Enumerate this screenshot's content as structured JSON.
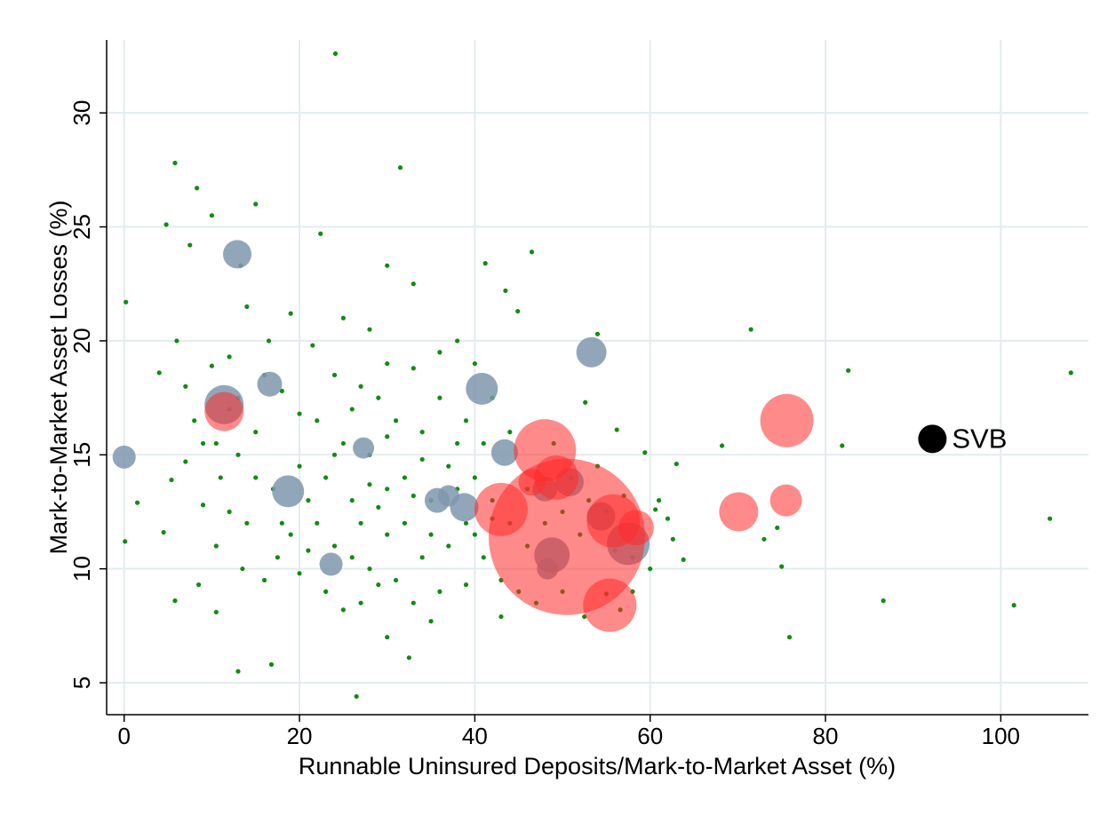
{
  "chart_data": {
    "type": "bubble",
    "xlabel": "Runnable Uninsured Deposits/Mark-to-Market Asset (%)",
    "ylabel": "Mark-to-Market Asset Losses (%)",
    "xlim": [
      -2,
      110
    ],
    "ylim": [
      3.6,
      33.2
    ],
    "xticks": [
      0,
      20,
      40,
      60,
      80,
      100
    ],
    "yticks": [
      5,
      10,
      15,
      20,
      25,
      30
    ],
    "grid": true,
    "annotations": [
      {
        "text": "SVB",
        "color": "#5a6e3a"
      }
    ],
    "series": [
      {
        "color": "#138a13",
        "opacity": 1,
        "marker_size": 2.6,
        "x": [
          24.1,
          5.8,
          31.5,
          8.3,
          15,
          4.8,
          10,
          7.5,
          22.4,
          13.3,
          30,
          33,
          43.5,
          46.5,
          41.2,
          71.5,
          82.6,
          108,
          68.2,
          81.9,
          105.6,
          101.5,
          86.6,
          75.9,
          75,
          74.5,
          73,
          63.8,
          62.6,
          60.6,
          59.4,
          56.2,
          52.6,
          54,
          38,
          44.9,
          0.2,
          1.5,
          0.1,
          5.4,
          9,
          4.5,
          5.8,
          10.5,
          16.8,
          13,
          26.5,
          32.5,
          30,
          35,
          43,
          52.5,
          55,
          56.6,
          39,
          20,
          17.5,
          8.5,
          28,
          25,
          21.5,
          19,
          16.5,
          14,
          12,
          10,
          7,
          6,
          4,
          10.5,
          7,
          8,
          13,
          15,
          12,
          10.5,
          13.5,
          16,
          18,
          20,
          22,
          24,
          26,
          28,
          30,
          32,
          34,
          36,
          22,
          24,
          26,
          28,
          30,
          32,
          34,
          36,
          38,
          40,
          42,
          44,
          46,
          48,
          50,
          46,
          48,
          50,
          52,
          54,
          44,
          42,
          40,
          36,
          33,
          30,
          27,
          25,
          23,
          21,
          19,
          17,
          15,
          13,
          11,
          9,
          27,
          29,
          31,
          33,
          37,
          39,
          41,
          43,
          45,
          47,
          23,
          25,
          27,
          29,
          35,
          37,
          39,
          41,
          20,
          18,
          16,
          14,
          12,
          31,
          29,
          35,
          26,
          33,
          24,
          28,
          30,
          38,
          21,
          34,
          40,
          42,
          49,
          51,
          53,
          55,
          57,
          58,
          60,
          61,
          62,
          63,
          58,
          56
        ],
        "y": [
          32.6,
          27.8,
          27.6,
          26.7,
          26,
          25.1,
          25.5,
          24.2,
          24.7,
          23.3,
          23.3,
          22.5,
          22.2,
          23.9,
          23.4,
          20.5,
          18.7,
          18.6,
          15.4,
          15.4,
          12.2,
          8.4,
          8.6,
          7,
          10.1,
          11.8,
          11.3,
          10.4,
          11.3,
          12.6,
          15.1,
          16.1,
          17.3,
          20.3,
          20,
          21.3,
          21.7,
          12.9,
          11.2,
          13.9,
          12.8,
          11.6,
          8.6,
          8.1,
          5.8,
          5.5,
          4.4,
          6.1,
          7,
          7.7,
          7.9,
          7.9,
          8.9,
          8.2,
          9.3,
          9.8,
          10.5,
          9.3,
          20.5,
          21,
          19.8,
          21.2,
          20,
          21.5,
          19.3,
          18.9,
          18,
          20,
          18.6,
          15.5,
          14.7,
          16.5,
          17.5,
          14,
          12.5,
          11,
          10,
          9.5,
          12,
          14.5,
          16.5,
          18.5,
          17,
          15,
          13.5,
          12,
          10.5,
          9,
          12,
          11,
          13,
          10,
          11.5,
          14,
          16,
          17.5,
          15.5,
          14,
          13,
          12,
          11,
          10,
          9,
          13.5,
          12,
          12.5,
          11.5,
          14.5,
          16,
          17.5,
          19,
          19.5,
          18.8,
          19,
          18,
          15.5,
          14,
          13,
          11.5,
          13.5,
          16,
          15,
          14,
          15.5,
          12,
          12.7,
          9.5,
          8.5,
          11,
          12,
          10.5,
          9.5,
          9,
          8.5,
          9,
          8.2,
          8.5,
          9.3,
          13,
          14.5,
          16.5,
          15.5,
          16.8,
          17.8,
          18.5,
          12,
          17,
          16.5,
          17.5,
          11.5,
          10.5,
          13.2,
          15,
          13.7,
          15.8,
          13.5,
          10.8,
          14.8,
          11.5,
          12.2,
          15.5,
          14,
          13,
          12.5,
          13.2,
          10.5,
          10,
          13,
          12.2,
          14.6,
          9,
          10.8
        ]
      },
      {
        "color": "#7f96ad",
        "opacity": 0.85,
        "x": [
          0,
          12.9,
          11.4,
          16.6,
          18.7,
          23.6,
          27.3,
          40.8,
          43.4,
          53.3,
          35.7,
          37,
          38.8,
          48,
          50.8,
          48.8,
          48.3,
          57.5,
          54.4
        ],
        "y": [
          14.9,
          23.8,
          17.2,
          18.1,
          13.4,
          10.2,
          15.3,
          17.9,
          15.1,
          19.5,
          13,
          13.2,
          12.7,
          13.5,
          13.8,
          10.6,
          10,
          11.1,
          12.3
        ],
        "sizes": [
          13,
          16,
          22,
          14,
          18,
          13,
          12,
          18,
          15,
          17,
          14,
          12,
          16,
          14,
          16,
          20,
          12,
          24,
          16
        ]
      },
      {
        "color": "#ff2a2a",
        "opacity": 0.55,
        "x": [
          11.4,
          50.5,
          48,
          43,
          55.4,
          55.8,
          58.4,
          49.3,
          46.5,
          70.1,
          75.5,
          75.6
        ],
        "y": [
          16.9,
          11.4,
          15.2,
          12.6,
          8.4,
          12.1,
          11.8,
          14,
          13.8,
          12.5,
          13,
          16.5
        ],
        "sizes": [
          22,
          88,
          35,
          30,
          30,
          30,
          20,
          25,
          15,
          22,
          18,
          30
        ]
      },
      {
        "color": "#000000",
        "opacity": 1,
        "x": [
          92.2
        ],
        "y": [
          15.7
        ],
        "sizes": [
          16
        ]
      }
    ]
  }
}
